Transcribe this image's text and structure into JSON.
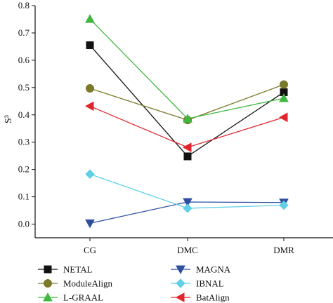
{
  "chart_data": {
    "type": "line",
    "categories": [
      "CG",
      "DMC",
      "DMR"
    ],
    "ylabel": "S³",
    "xlabel": "",
    "ylim": [
      -0.05,
      0.8
    ],
    "yticks": [
      0.0,
      0.1,
      0.2,
      0.3,
      0.4,
      0.5,
      0.6,
      0.7,
      0.8
    ],
    "ytick_labels": [
      "0.0",
      "0.1",
      "0.2",
      "0.3",
      "0.4",
      "0.5",
      "0.6",
      "0.7",
      "0.8"
    ],
    "grid": false,
    "legend_position": "bottom",
    "series": [
      {
        "name": "NETAL",
        "values": [
          0.655,
          0.248,
          0.483
        ],
        "color": "#111111",
        "marker": "square"
      },
      {
        "name": "ModuleAlign",
        "values": [
          0.497,
          0.381,
          0.511
        ],
        "color": "#7a7a2a",
        "marker": "circle"
      },
      {
        "name": "L-GRAAL",
        "values": [
          0.751,
          0.386,
          0.461
        ],
        "color": "#3fb83f",
        "marker": "triangle-up"
      },
      {
        "name": "MAGNA",
        "values": [
          0.003,
          0.081,
          0.079
        ],
        "color": "#2e4fa0",
        "marker": "triangle-down"
      },
      {
        "name": "IBNAL",
        "values": [
          0.183,
          0.058,
          0.069
        ],
        "color": "#5fd0e6",
        "marker": "diamond"
      },
      {
        "name": "BatAlign",
        "values": [
          0.432,
          0.281,
          0.391
        ],
        "color": "#e0262c",
        "marker": "triangle-left"
      }
    ]
  }
}
